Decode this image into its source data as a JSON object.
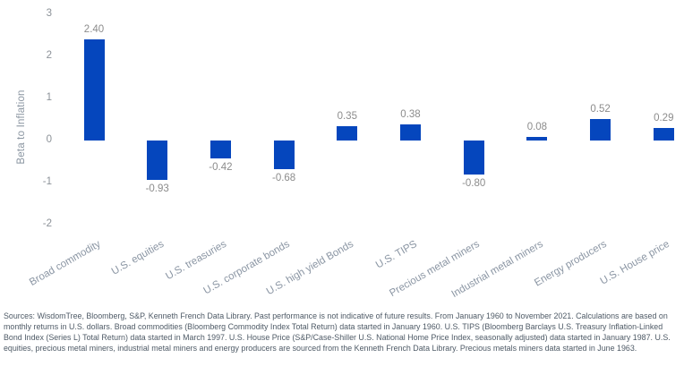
{
  "chart_data": {
    "type": "bar",
    "title": "",
    "xlabel": "",
    "ylabel": "Beta to Inflation",
    "categories": [
      "Broad commodity",
      "U.S. equities",
      "U.S. treasuries",
      "U.S. corporate bonds",
      "U.S. high yield Bonds",
      "U.S. TIPS",
      "Precious metal miners",
      "Industrial metal miners",
      "Energy producers",
      "U.S. House price"
    ],
    "values": [
      2.4,
      -0.93,
      -0.42,
      -0.68,
      0.35,
      0.38,
      -0.8,
      0.08,
      0.52,
      0.29
    ],
    "value_labels": [
      "2.40",
      "-0.93",
      "-0.42",
      "-0.68",
      "0.35",
      "0.38",
      "-0.80",
      "0.08",
      "0.52",
      "0.29"
    ],
    "ylim": [
      -2,
      3
    ],
    "yticks": [
      3,
      2,
      1,
      0,
      -1,
      -2
    ],
    "grid": false,
    "legend": "none",
    "bar_color": "#0546BD",
    "value_label_color": "#8c8c8c",
    "tick_label_color": "#8c9298",
    "category_label_color": "#8a95a3"
  },
  "footnote": "Sources: WisdomTree, Bloomberg, S&P, Kenneth French Data Library. Past performance is not indicative of future results. From January 1960 to November 2021. Calculations are based on monthly returns in U.S. dollars. Broad commodities (Bloomberg Commodity Index Total Return) data started in January 1960. U.S. TIPS (Bloomberg Barclays U.S. Treasury Inflation-Linked Bond Index (Series L) Total Return) data started in March 1997. U.S. House Price (S&P/Case-Shiller U.S. National Home Price Index, seasonally adjusted) data started in January 1987. U.S. equities, precious metal miners, industrial metal miners and energy producers are sourced from the Kenneth French Data Library. Precious metals miners data started in June 1963."
}
